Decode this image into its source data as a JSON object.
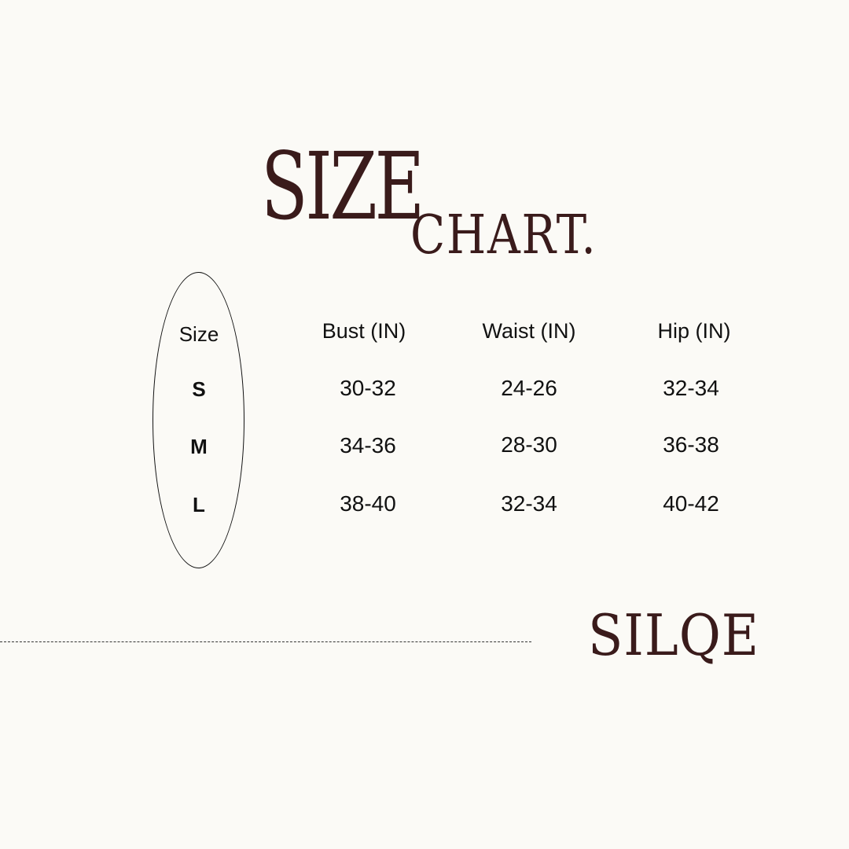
{
  "title": {
    "line1": "SIZE",
    "line2": "CHART."
  },
  "table": {
    "size_header": "Size",
    "headers": [
      "Bust (IN)",
      "Waist (IN)",
      "Hip (IN)"
    ],
    "rows": [
      {
        "size": "S",
        "values": [
          "30-32",
          "24-26",
          "32-34"
        ]
      },
      {
        "size": "M",
        "values": [
          "34-36",
          "28-30",
          "36-38"
        ]
      },
      {
        "size": "L",
        "values": [
          "38-40",
          "32-34",
          "40-42"
        ]
      }
    ]
  },
  "brand": {
    "logo": "SILQE"
  },
  "colors": {
    "background": "#fbfaf6",
    "accent": "#3a1b1b"
  }
}
